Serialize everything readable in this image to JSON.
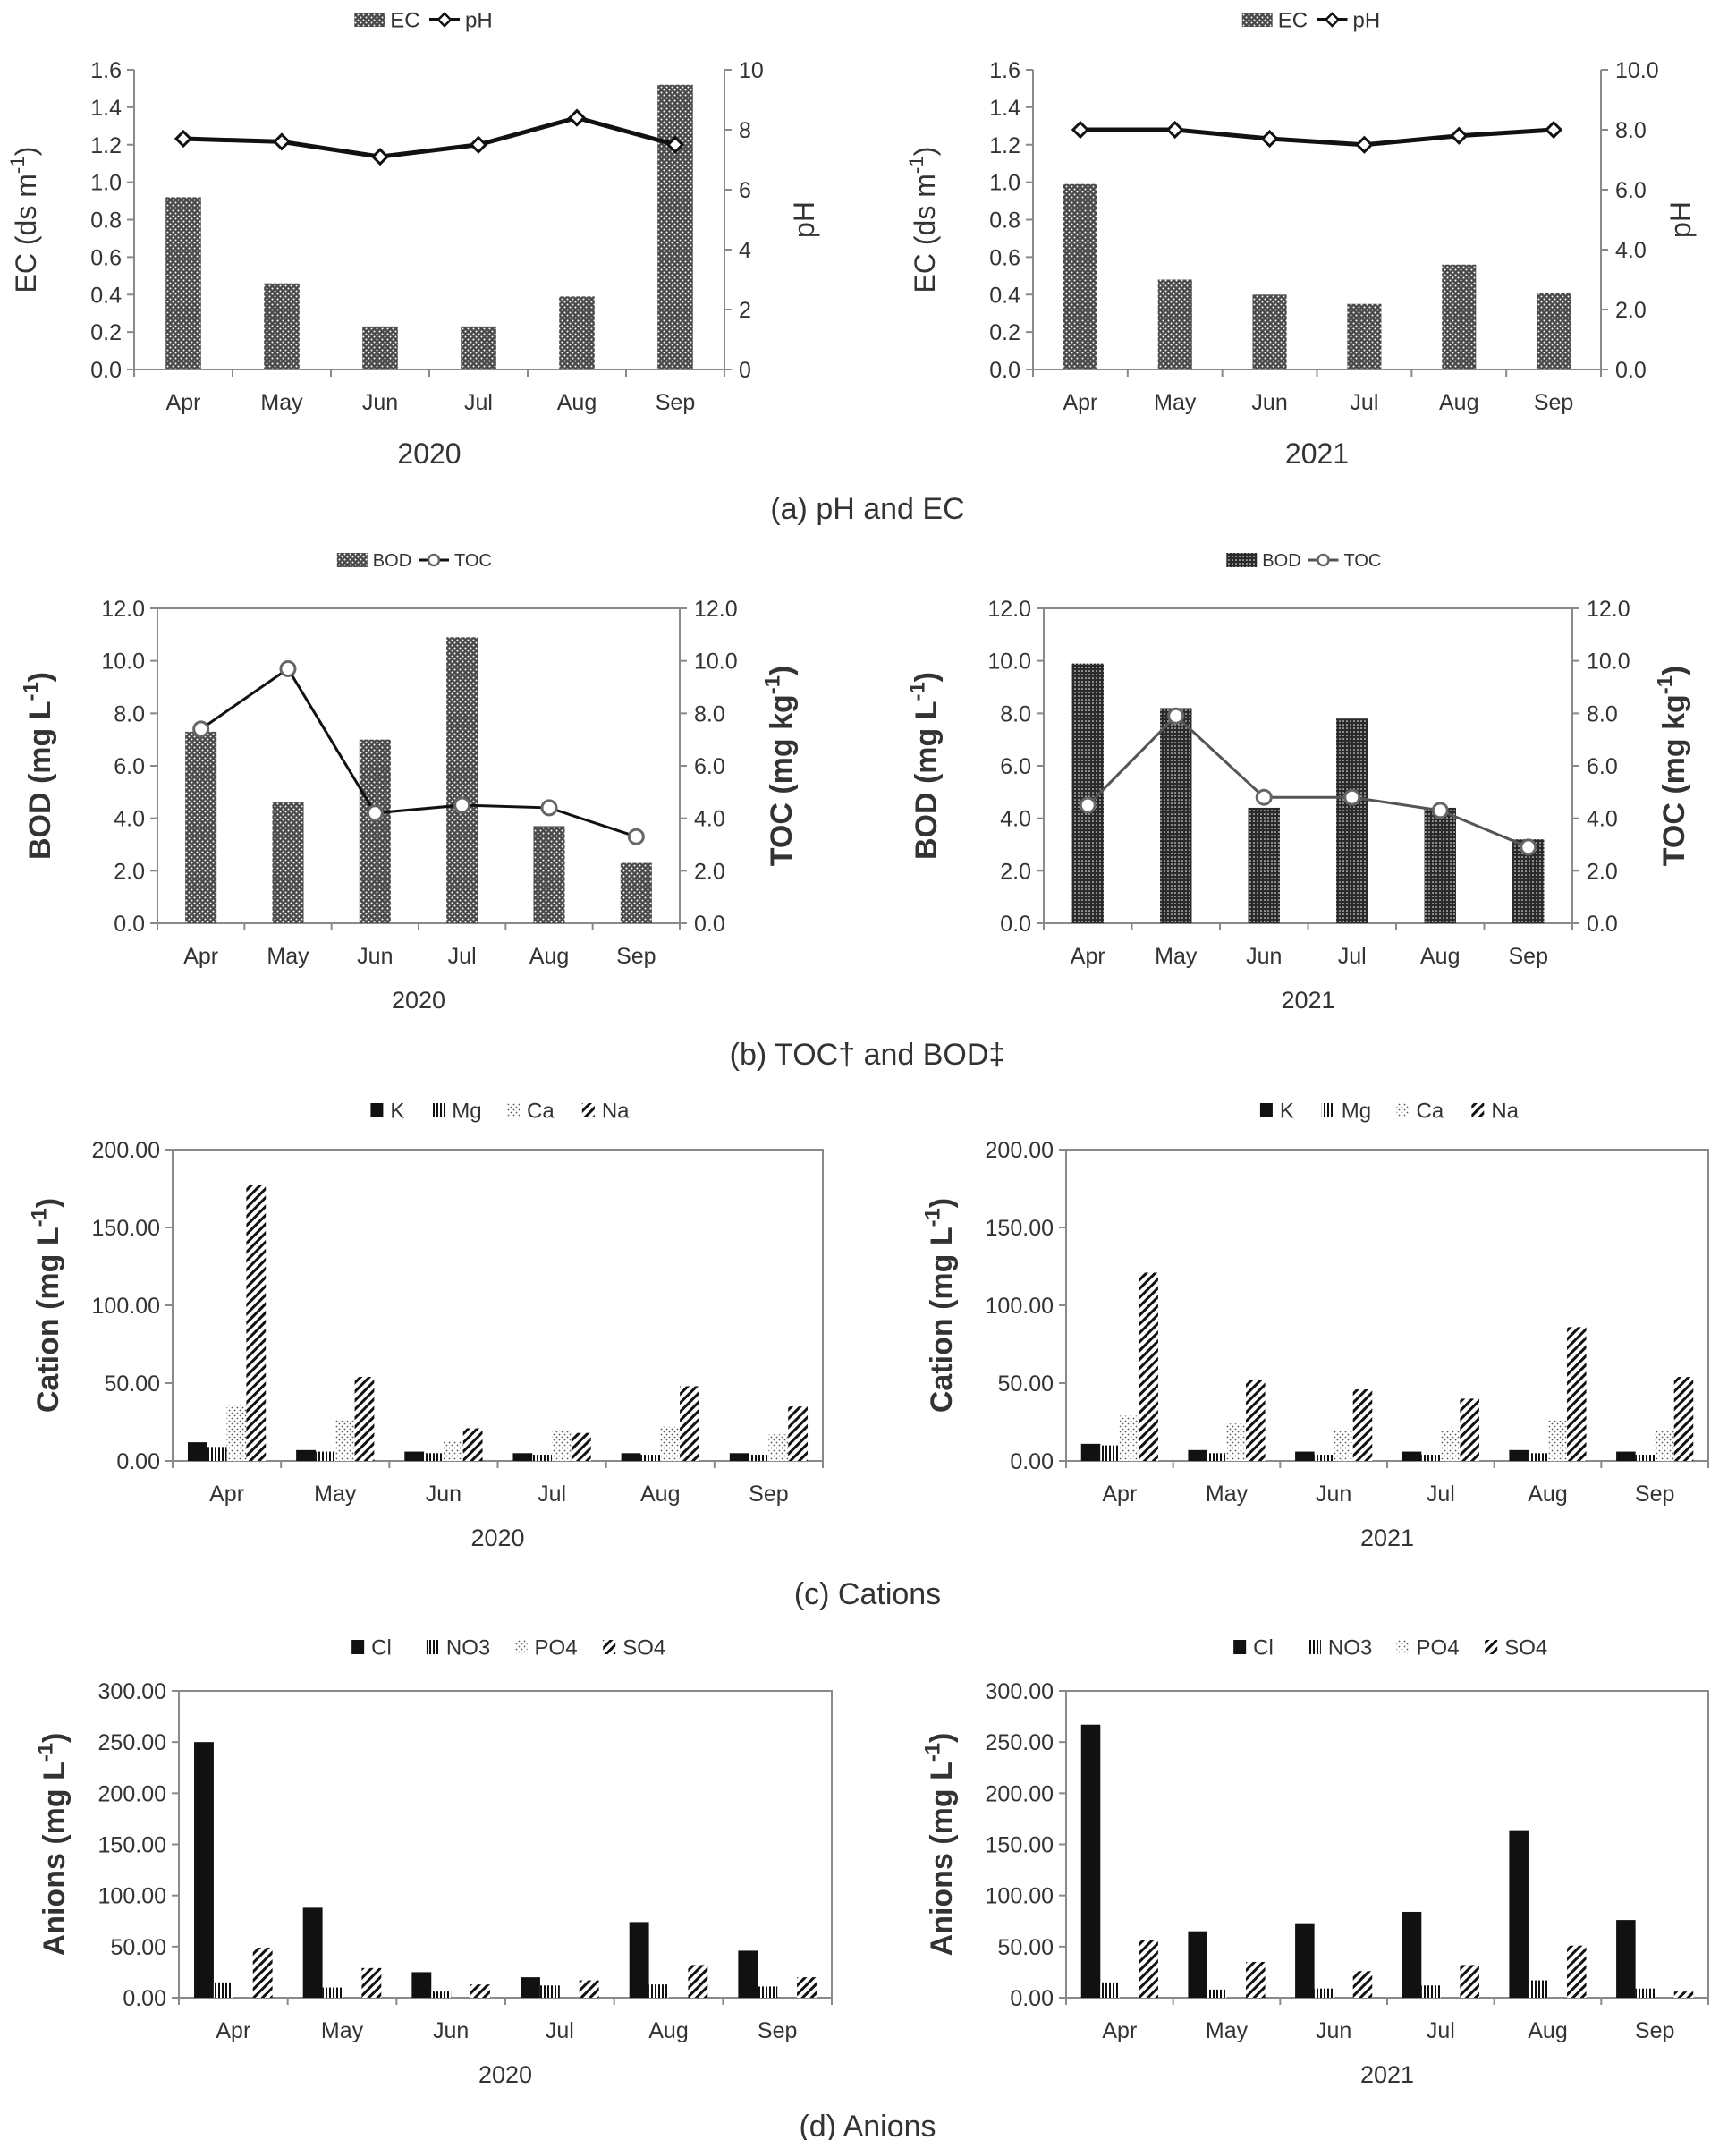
{
  "figure": {
    "panel_captions": [
      "(a) pH and EC",
      "(b) TOC† and BOD‡",
      "(c) Cations",
      "(d) Anions"
    ]
  },
  "colors": {
    "bar_dark": "#4a4a4a",
    "bar_black": "#111111",
    "line": "#111111",
    "line_gray": "#555555",
    "axis": "#8a8a8a"
  },
  "chart_data": [
    {
      "id": "a-2020",
      "panel": "a",
      "type": "bar+line",
      "xlabel": "2020",
      "categories": [
        "Apr",
        "May",
        "Jun",
        "Jul",
        "Aug",
        "Sep"
      ],
      "legend": [
        "EC",
        "pH"
      ],
      "ylabel_left": "EC (ds m-1)",
      "ylabel_right": "pH",
      "ylim_left": [
        0,
        1.6
      ],
      "yticks_left": [
        "0.0",
        "0.2",
        "0.4",
        "0.6",
        "0.8",
        "1.0",
        "1.2",
        "1.4",
        "1.6"
      ],
      "ylim_right": [
        0,
        10
      ],
      "yticks_right": [
        "0",
        "2",
        "4",
        "6",
        "8",
        "10"
      ],
      "bars": [
        {
          "name": "EC",
          "values": [
            0.92,
            0.46,
            0.23,
            0.23,
            0.39,
            1.52
          ]
        }
      ],
      "line": {
        "name": "pH",
        "values": [
          7.7,
          7.6,
          7.1,
          7.5,
          8.4,
          7.5
        ]
      }
    },
    {
      "id": "a-2021",
      "panel": "a",
      "type": "bar+line",
      "xlabel": "2021",
      "categories": [
        "Apr",
        "May",
        "Jun",
        "Jul",
        "Aug",
        "Sep"
      ],
      "legend": [
        "EC",
        "pH"
      ],
      "ylabel_left": "EC (ds m-1)",
      "ylabel_right": "pH",
      "ylim_left": [
        0,
        1.6
      ],
      "yticks_left": [
        "0.0",
        "0.2",
        "0.4",
        "0.6",
        "0.8",
        "1.0",
        "1.2",
        "1.4",
        "1.6"
      ],
      "ylim_right": [
        0,
        10
      ],
      "yticks_right": [
        "0.0",
        "2.0",
        "4.0",
        "6.0",
        "8.0",
        "10.0"
      ],
      "bars": [
        {
          "name": "EC",
          "values": [
            0.99,
            0.48,
            0.4,
            0.35,
            0.56,
            0.41
          ]
        }
      ],
      "line": {
        "name": "pH",
        "values": [
          8.0,
          8.0,
          7.7,
          7.5,
          7.8,
          8.0
        ]
      }
    },
    {
      "id": "b-2020",
      "panel": "b",
      "type": "bar+line",
      "xlabel": "2020",
      "categories": [
        "Apr",
        "May",
        "Jun",
        "Jul",
        "Aug",
        "Sep"
      ],
      "legend": [
        "BOD",
        "TOC"
      ],
      "ylabel_left": "BOD (mg L-1)",
      "ylabel_right": "TOC (mg kg-1)",
      "ylim_left": [
        0,
        12
      ],
      "yticks_left": [
        "0.0",
        "2.0",
        "4.0",
        "6.0",
        "8.0",
        "10.0",
        "12.0"
      ],
      "ylim_right": [
        0,
        12
      ],
      "yticks_right": [
        "0.0",
        "2.0",
        "4.0",
        "6.0",
        "8.0",
        "10.0",
        "12.0"
      ],
      "bars": [
        {
          "name": "BOD",
          "values": [
            7.3,
            4.6,
            7.0,
            10.9,
            3.7,
            2.3
          ]
        }
      ],
      "line": {
        "name": "TOC",
        "values": [
          7.4,
          9.7,
          4.2,
          4.5,
          4.4,
          3.3
        ]
      }
    },
    {
      "id": "b-2021",
      "panel": "b",
      "type": "bar+line",
      "xlabel": "2021",
      "categories": [
        "Apr",
        "May",
        "Jun",
        "Jul",
        "Aug",
        "Sep"
      ],
      "legend": [
        "BOD",
        "TOC"
      ],
      "ylabel_left": "BOD (mg L-1)",
      "ylabel_right": "TOC (mg kg-1)",
      "ylim_left": [
        0,
        12
      ],
      "yticks_left": [
        "0.0",
        "2.0",
        "4.0",
        "6.0",
        "8.0",
        "10.0",
        "12.0"
      ],
      "ylim_right": [
        0,
        12
      ],
      "yticks_right": [
        "0.0",
        "2.0",
        "4.0",
        "6.0",
        "8.0",
        "10.0",
        "12.0"
      ],
      "bars": [
        {
          "name": "BOD",
          "values": [
            9.9,
            8.2,
            4.4,
            7.8,
            4.4,
            3.2
          ]
        }
      ],
      "line": {
        "name": "TOC",
        "values": [
          4.5,
          7.9,
          4.8,
          4.8,
          4.3,
          2.9
        ]
      }
    },
    {
      "id": "c-2020",
      "panel": "c",
      "type": "bar",
      "xlabel": "2020",
      "categories": [
        "Apr",
        "May",
        "Jun",
        "Jul",
        "Aug",
        "Sep"
      ],
      "legend": [
        "K",
        "Mg",
        "Ca",
        "Na"
      ],
      "ylabel_left": "Cation (mg L-1)",
      "ylim_left": [
        0,
        200
      ],
      "yticks_left": [
        "0.00",
        "50.00",
        "100.00",
        "150.00",
        "200.00"
      ],
      "bars": [
        {
          "name": "K",
          "values": [
            12,
            7,
            6,
            5,
            5,
            5
          ]
        },
        {
          "name": "Mg",
          "values": [
            9,
            6,
            5,
            4,
            4,
            4
          ]
        },
        {
          "name": "Ca",
          "values": [
            36,
            26,
            13,
            20,
            22,
            17
          ]
        },
        {
          "name": "Na",
          "values": [
            177,
            54,
            21,
            18,
            48,
            35
          ]
        }
      ]
    },
    {
      "id": "c-2021",
      "panel": "c",
      "type": "bar",
      "xlabel": "2021",
      "categories": [
        "Apr",
        "May",
        "Jun",
        "Jul",
        "Aug",
        "Sep"
      ],
      "legend": [
        "K",
        "Mg",
        "Ca",
        "Na"
      ],
      "ylabel_left": "Cation (mg L-1)",
      "ylim_left": [
        0,
        200
      ],
      "yticks_left": [
        "0.00",
        "50.00",
        "100.00",
        "150.00",
        "200.00"
      ],
      "bars": [
        {
          "name": "K",
          "values": [
            11,
            7,
            6,
            6,
            7,
            6
          ]
        },
        {
          "name": "Mg",
          "values": [
            10,
            5,
            4,
            4,
            5,
            4
          ]
        },
        {
          "name": "Ca",
          "values": [
            29,
            24,
            19,
            19,
            26,
            19
          ]
        },
        {
          "name": "Na",
          "values": [
            121,
            52,
            46,
            40,
            86,
            54
          ]
        }
      ]
    },
    {
      "id": "d-2020",
      "panel": "d",
      "type": "bar",
      "xlabel": "2020",
      "categories": [
        "Apr",
        "May",
        "Jun",
        "Jul",
        "Aug",
        "Sep"
      ],
      "legend": [
        "Cl",
        "NO3",
        "PO4",
        "SO4"
      ],
      "ylabel_left": "Anions (mg L-1)",
      "ylim_left": [
        0,
        300
      ],
      "yticks_left": [
        "0.00",
        "50.00",
        "100.00",
        "150.00",
        "200.00",
        "250.00",
        "300.00"
      ],
      "bars": [
        {
          "name": "Cl",
          "values": [
            250,
            88,
            25,
            20,
            74,
            46
          ]
        },
        {
          "name": "NO3",
          "values": [
            15,
            10,
            6,
            12,
            13,
            11
          ]
        },
        {
          "name": "PO4",
          "values": [
            0,
            0,
            0,
            0,
            0,
            0
          ]
        },
        {
          "name": "SO4",
          "values": [
            49,
            29,
            13,
            17,
            32,
            20
          ]
        }
      ]
    },
    {
      "id": "d-2021",
      "panel": "d",
      "type": "bar",
      "xlabel": "2021",
      "categories": [
        "Apr",
        "May",
        "Jun",
        "Jul",
        "Aug",
        "Sep"
      ],
      "legend": [
        "Cl",
        "NO3",
        "PO4",
        "SO4"
      ],
      "ylabel_left": "Anions (mg L-1)",
      "ylim_left": [
        0,
        300
      ],
      "yticks_left": [
        "0.00",
        "50.00",
        "100.00",
        "150.00",
        "200.00",
        "250.00",
        "300.00"
      ],
      "bars": [
        {
          "name": "Cl",
          "values": [
            267,
            65,
            72,
            84,
            163,
            76
          ]
        },
        {
          "name": "NO3",
          "values": [
            15,
            8,
            9,
            12,
            17,
            9
          ]
        },
        {
          "name": "PO4",
          "values": [
            0,
            0,
            0,
            0,
            0,
            0
          ]
        },
        {
          "name": "SO4",
          "values": [
            56,
            35,
            26,
            32,
            51,
            6
          ]
        }
      ]
    }
  ]
}
